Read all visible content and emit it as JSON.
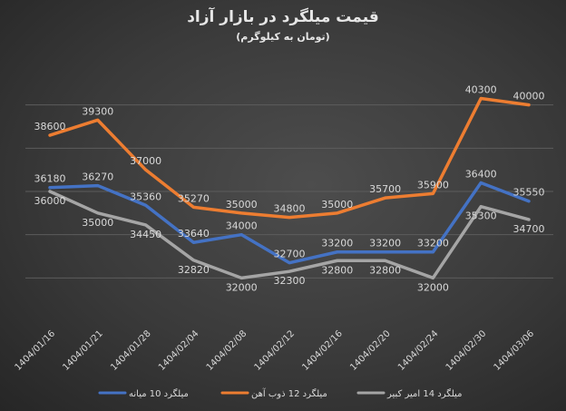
{
  "chart_data": {
    "type": "line",
    "title": "قیمت میلگرد در بازار آزاد",
    "subtitle": "(تومان به کیلوگرم)",
    "xlabel": "",
    "ylabel": "",
    "categories": [
      "1404/01/16",
      "1404/01/21",
      "1404/01/28",
      "1404/02/04",
      "1404/02/08",
      "1404/02/12",
      "1404/02/16",
      "1404/02/20",
      "1404/02/24",
      "1404/02/30",
      "1404/03/06"
    ],
    "ylim": [
      30000,
      42000
    ],
    "gridlines": [
      32000,
      34000,
      36000,
      38000,
      40000
    ],
    "grid": true,
    "y_axis_labels_shown": false,
    "legend_position": "bottom",
    "data_labels": true,
    "series": [
      {
        "name": "میلگرد 10 میانه",
        "color": "#4472c4",
        "values": [
          36180,
          36270,
          35360,
          33640,
          34000,
          32700,
          33200,
          33200,
          33200,
          36400,
          35550
        ]
      },
      {
        "name": "میلگرد 12 ذوب آهن",
        "color": "#ed7d31",
        "values": [
          38600,
          39300,
          37000,
          35270,
          35000,
          34800,
          35000,
          35700,
          35900,
          40300,
          40000
        ]
      },
      {
        "name": "میلگرد 14 امیر کبیر",
        "color": "#a5a5a5",
        "values": [
          36000,
          35000,
          34450,
          32820,
          32000,
          32300,
          32800,
          32800,
          32000,
          35300,
          34700
        ]
      }
    ]
  }
}
